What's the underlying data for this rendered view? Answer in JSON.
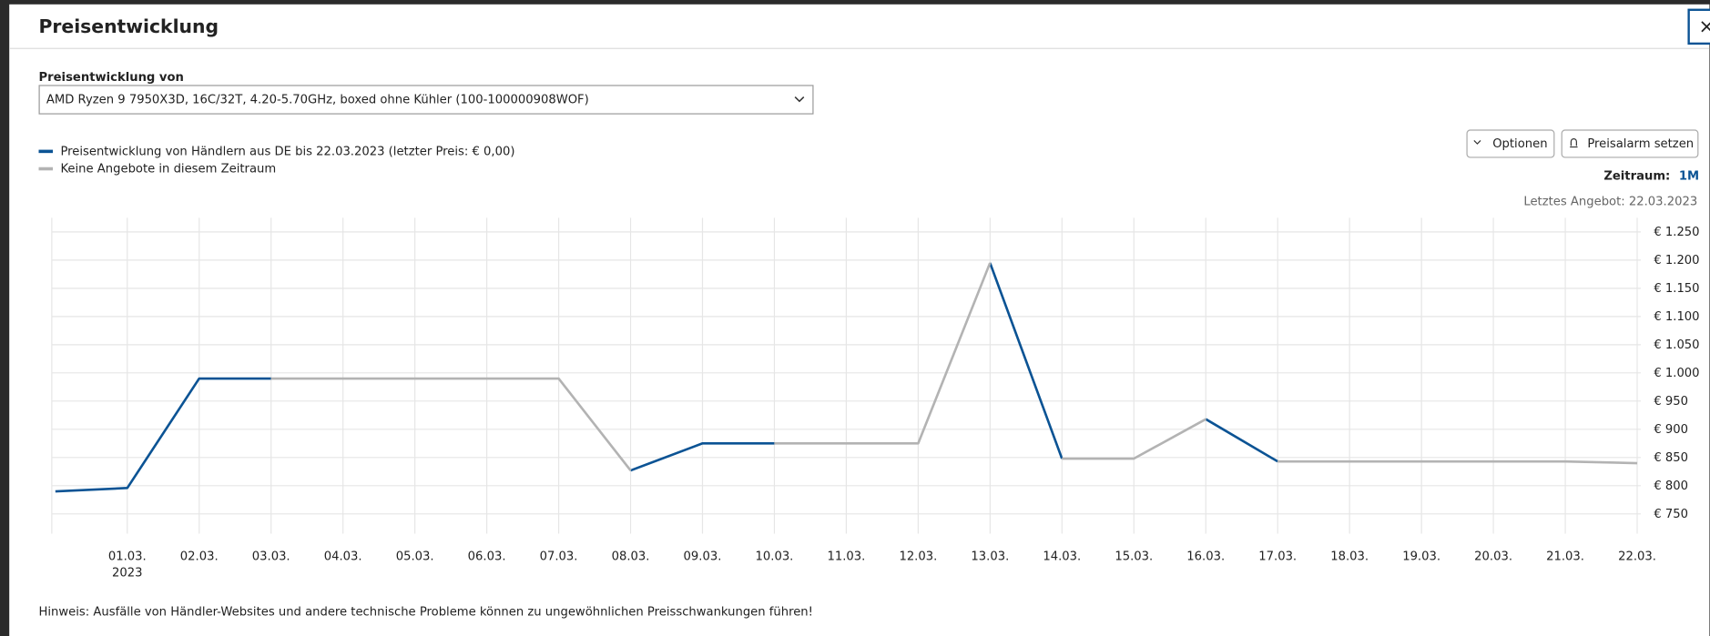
{
  "header": {
    "title": "Preisentwicklung",
    "close": "×"
  },
  "product_select": {
    "label": "Preisentwicklung von",
    "value": "AMD Ryzen 9 7950X3D, 16C/32T, 4.20-5.70GHz, boxed ohne Kühler (100-100000908WOF)"
  },
  "buttons": [
    "Optionen",
    "Preisalarm setzen"
  ],
  "period": {
    "label": "Zeitraum:",
    "value": "1M"
  },
  "last_offer": "Letztes Angebot: 22.03.2023",
  "note": "Hinweis: Ausfälle von Händler-Websites und andere technische Probleme können zu ungewöhnlichen Preisschwankungen führen!",
  "chart_data": {
    "type": "line",
    "x_year_label": "2023",
    "xlim": [
      -0.05,
      22.05
    ],
    "xticks": [
      {
        "value": 1,
        "label": "01.03."
      },
      {
        "value": 2,
        "label": "02.03."
      },
      {
        "value": 3,
        "label": "03.03."
      },
      {
        "value": 4,
        "label": "04.03."
      },
      {
        "value": 5,
        "label": "05.03."
      },
      {
        "value": 6,
        "label": "06.03."
      },
      {
        "value": 7,
        "label": "07.03."
      },
      {
        "value": 8,
        "label": "08.03."
      },
      {
        "value": 9,
        "label": "09.03."
      },
      {
        "value": 10,
        "label": "10.03."
      },
      {
        "value": 11,
        "label": "11.03."
      },
      {
        "value": 12,
        "label": "12.03."
      },
      {
        "value": 13,
        "label": "13.03."
      },
      {
        "value": 14,
        "label": "14.03."
      },
      {
        "value": 15,
        "label": "15.03."
      },
      {
        "value": 16,
        "label": "16.03."
      },
      {
        "value": 17,
        "label": "17.03."
      },
      {
        "value": 18,
        "label": "18.03."
      },
      {
        "value": 19,
        "label": "19.03."
      },
      {
        "value": 20,
        "label": "20.03."
      },
      {
        "value": 21,
        "label": "21.03."
      },
      {
        "value": 22,
        "label": "22.03."
      }
    ],
    "ylim": [
      715,
      1275
    ],
    "yticks": [
      {
        "value": 750,
        "label": "€ 750"
      },
      {
        "value": 800,
        "label": "€ 800"
      },
      {
        "value": 850,
        "label": "€ 850"
      },
      {
        "value": 900,
        "label": "€ 900"
      },
      {
        "value": 950,
        "label": "€ 950"
      },
      {
        "value": 1000,
        "label": "€ 1.000"
      },
      {
        "value": 1050,
        "label": "€ 1.050"
      },
      {
        "value": 1100,
        "label": "€ 1.100"
      },
      {
        "value": 1150,
        "label": "€ 1.150"
      },
      {
        "value": 1200,
        "label": "€ 1.200"
      },
      {
        "value": 1250,
        "label": "€ 1.250"
      }
    ],
    "grid": true,
    "series": [
      {
        "name": "Preisentwicklung von Händlern aus DE bis 22.03.2023 (letzter Preis: € 0,00)",
        "color": "#0b5394",
        "x": [
          0,
          1,
          2,
          3,
          null,
          8,
          9,
          10,
          null,
          13,
          14,
          null,
          16,
          17
        ],
        "values": [
          790,
          796,
          990,
          990,
          null,
          827,
          875,
          875,
          null,
          1195,
          848,
          null,
          918,
          843
        ]
      },
      {
        "name": "Keine Angebote in diesem Zeitraum",
        "color": "#b3b3b3",
        "x": [
          3,
          4,
          5,
          6,
          7,
          8,
          null,
          10,
          11,
          12,
          13,
          null,
          14,
          15,
          16,
          null,
          17,
          18,
          19,
          20,
          21,
          22
        ],
        "values": [
          990,
          990,
          990,
          990,
          990,
          827,
          null,
          875,
          875,
          875,
          1195,
          null,
          848,
          848,
          918,
          null,
          843,
          843,
          843,
          843,
          843,
          840
        ]
      }
    ]
  }
}
